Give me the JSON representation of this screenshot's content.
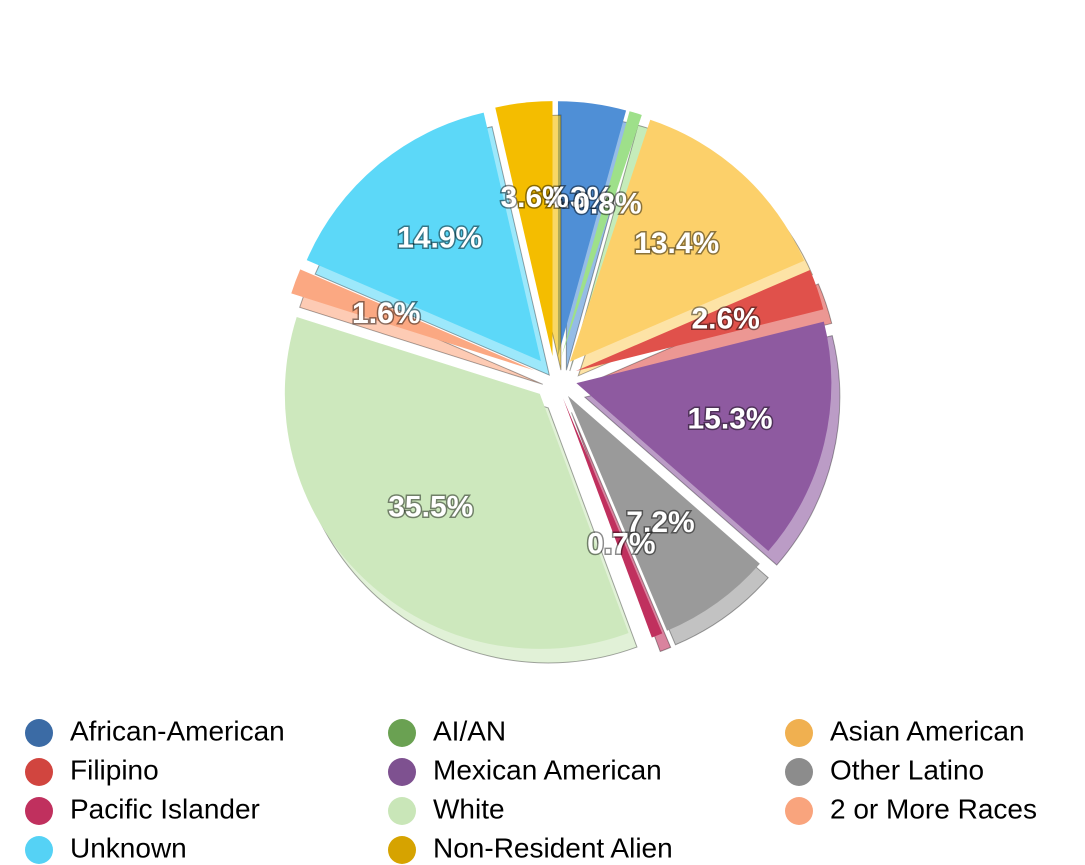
{
  "chart_data": {
    "type": "pie",
    "categories": [
      "African-American",
      "AI/AN",
      "Asian American",
      "Filipino",
      "Mexican American",
      "Other Latino",
      "Pacific Islander",
      "White",
      "2 or More Races",
      "Unknown",
      "Non-Resident Alien"
    ],
    "values": [
      4.3,
      0.8,
      13.4,
      2.6,
      15.3,
      7.2,
      0.7,
      35.5,
      1.6,
      14.9,
      3.6
    ],
    "value_labels": [
      "4.3%",
      "0.8%",
      "13.4%",
      "2.6%",
      "15.3%",
      "7.2%",
      "0.7%",
      "35.5%",
      "1.6%",
      "14.9%",
      "3.6%"
    ],
    "colors": [
      "#4f8fd6",
      "#9ee08a",
      "#fcd06a",
      "#e0514b",
      "#8e5aa0",
      "#9a9a9a",
      "#c0305e",
      "#cde8bd",
      "#fba882",
      "#5cd8f8",
      "#f4bd00"
    ],
    "legend_colors": [
      "#3b6ba5",
      "#6aa152",
      "#f0b050",
      "#d1453f",
      "#7e5190",
      "#8c8c8c",
      "#c0305e",
      "#c9e6b8",
      "#f9a47d",
      "#55d2f5",
      "#d6a300"
    ],
    "legend": "bottom"
  }
}
